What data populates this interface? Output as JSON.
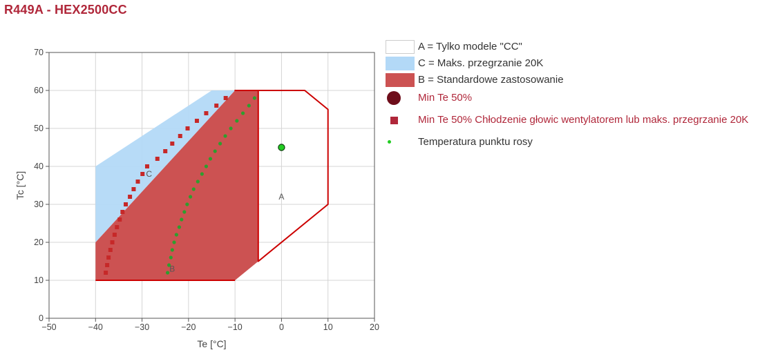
{
  "title": "R449A - HEX2500CC",
  "chart_data": {
    "type": "area",
    "xlabel": "Te [°C]",
    "ylabel": "Tc [°C]",
    "xlim": [
      -50,
      20
    ],
    "ylim": [
      0,
      70
    ],
    "xticks": [
      -50,
      -40,
      -30,
      -20,
      -10,
      0,
      10,
      20
    ],
    "yticks": [
      0,
      10,
      20,
      30,
      40,
      50,
      60,
      70
    ],
    "xtick_labels": [
      "−50",
      "−40",
      "−30",
      "−20",
      "−10",
      "0",
      "10",
      "20"
    ],
    "ytick_labels": [
      "0",
      "10",
      "20",
      "30",
      "40",
      "50",
      "60",
      "70"
    ],
    "grid": true,
    "regions": [
      {
        "id": "A",
        "label": "A",
        "legend": "A = Tylko modele \"CC\"",
        "fill": "#ffffff",
        "stroke": "#cc0000",
        "points": [
          [
            -10,
            60
          ],
          [
            5,
            60
          ],
          [
            10,
            55
          ],
          [
            10,
            30
          ],
          [
            -5,
            15
          ],
          [
            -5,
            60
          ]
        ],
        "label_pos": [
          0,
          32
        ]
      },
      {
        "id": "C",
        "label": "C",
        "legend": "C = Maks. przegrzanie 20K",
        "fill": "#b3d9f7",
        "stroke": "#b3d9f7",
        "points": [
          [
            -40,
            20
          ],
          [
            -40,
            40
          ],
          [
            -15,
            60
          ],
          [
            -10,
            60
          ]
        ],
        "label_pos": [
          -28.5,
          38
        ]
      },
      {
        "id": "B",
        "label": "B",
        "legend": "B = Standardowe zastosowanie",
        "fill": "#cc5252",
        "stroke": "#cc5252",
        "points": [
          [
            -40,
            10
          ],
          [
            -40,
            20
          ],
          [
            -10,
            60
          ],
          [
            -5,
            60
          ],
          [
            -5,
            15
          ],
          [
            -10,
            10
          ]
        ],
        "label_pos": [
          -23.5,
          13
        ]
      }
    ],
    "envelope_bottom": [
      [
        -10,
        10
      ],
      [
        -40,
        10
      ]
    ],
    "series": [
      {
        "name": "Min Te 50%",
        "marker": "circle",
        "color": "#22cc22",
        "points": [
          [
            0,
            45
          ]
        ]
      },
      {
        "name": "Min Te 50% Chłodzenie głowic wentylatorem lub maks. przegrzanie 20K",
        "marker": "square",
        "color": "#c62828",
        "points": [
          [
            -37.8,
            12
          ],
          [
            -37.5,
            14
          ],
          [
            -37.2,
            16
          ],
          [
            -36.8,
            18
          ],
          [
            -36.4,
            20
          ],
          [
            -35.9,
            22
          ],
          [
            -35.4,
            24
          ],
          [
            -34.8,
            26
          ],
          [
            -34.2,
            28
          ],
          [
            -33.5,
            30
          ],
          [
            -32.6,
            32
          ],
          [
            -31.8,
            34
          ],
          [
            -30.9,
            36
          ],
          [
            -29.9,
            38
          ],
          [
            -28.9,
            40
          ],
          [
            -26.7,
            42
          ],
          [
            -25.0,
            44
          ],
          [
            -23.5,
            46
          ],
          [
            -21.8,
            48
          ],
          [
            -20.2,
            50
          ],
          [
            -18.2,
            52
          ],
          [
            -16.2,
            54
          ],
          [
            -14.0,
            56
          ],
          [
            -12.0,
            58
          ]
        ]
      },
      {
        "name": "Temperatura punktu rosy",
        "marker": "dot",
        "color": "#2e9e2e",
        "points": [
          [
            -24.5,
            12
          ],
          [
            -24.2,
            14
          ],
          [
            -23.8,
            16
          ],
          [
            -23.5,
            18
          ],
          [
            -23.1,
            20
          ],
          [
            -22.6,
            22
          ],
          [
            -22.0,
            24
          ],
          [
            -21.5,
            26
          ],
          [
            -20.9,
            28
          ],
          [
            -20.3,
            30
          ],
          [
            -19.6,
            32
          ],
          [
            -18.9,
            34
          ],
          [
            -18.0,
            36
          ],
          [
            -17.1,
            38
          ],
          [
            -16.2,
            40
          ],
          [
            -15.3,
            42
          ],
          [
            -14.3,
            44
          ],
          [
            -13.2,
            46
          ],
          [
            -12.1,
            48
          ],
          [
            -10.9,
            50
          ],
          [
            -9.6,
            52
          ],
          [
            -8.3,
            54
          ],
          [
            -7.0,
            56
          ],
          [
            -5.8,
            58
          ]
        ]
      }
    ]
  },
  "legend": [
    {
      "symbol": "rect-white",
      "text": "A = Tylko modele \"CC\"",
      "color": "#333333"
    },
    {
      "symbol": "rect-blue",
      "text": "C = Maks. przegrzanie 20K",
      "color": "#333333"
    },
    {
      "symbol": "rect-red",
      "text": "B = Standardowe zastosowanie",
      "color": "#333333"
    },
    {
      "symbol": "circle-dark",
      "text": "Min Te 50%",
      "color": "#b0273a"
    },
    {
      "symbol": "square-red",
      "text": "Min Te 50% Chłodzenie głowic wentylatorem lub maks. przegrzanie 20K",
      "color": "#b0273a"
    },
    {
      "symbol": "dot-green",
      "text": "Temperatura punktu rosy",
      "color": "#333333"
    }
  ]
}
